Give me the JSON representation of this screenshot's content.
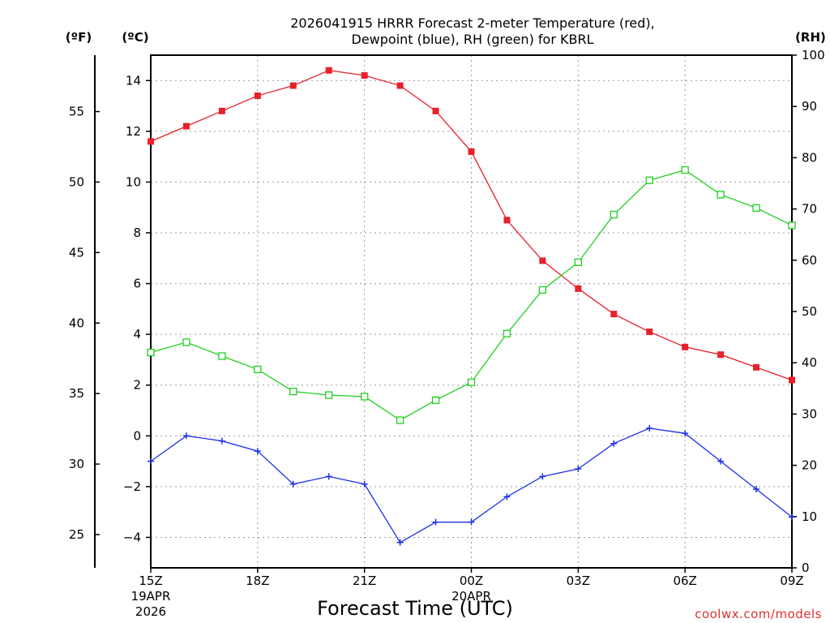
{
  "chart_data": {
    "type": "line",
    "title_line1": "2026041915 HRRR Forecast 2-meter Temperature (red),",
    "title_line2": "Dewpoint (blue), RH (green) for KBRL",
    "units": {
      "fahrenheit": "(ºF)",
      "celsius": "(ºC)",
      "rh": "(RH)"
    },
    "xlabel": "Forecast Time (UTC)",
    "credit": "coolwx.com/models",
    "x_hours": [
      0,
      1,
      2,
      3,
      4,
      5,
      6,
      7,
      8,
      9,
      10,
      11,
      12,
      13,
      14,
      15,
      16,
      17,
      18
    ],
    "xlim": [
      0,
      18
    ],
    "x_ticks": [
      {
        "hour": 0,
        "label": "15Z",
        "date": "19APR",
        "year": "2026"
      },
      {
        "hour": 3,
        "label": "18Z"
      },
      {
        "hour": 6,
        "label": "21Z"
      },
      {
        "hour": 9,
        "label": "00Z",
        "date": "20APR"
      },
      {
        "hour": 12,
        "label": "03Z"
      },
      {
        "hour": 15,
        "label": "06Z"
      },
      {
        "hour": 18,
        "label": "09Z"
      }
    ],
    "celsius_axis": {
      "ylim": [
        -5.2,
        15
      ],
      "ticks": [
        -4,
        -2,
        0,
        2,
        4,
        6,
        8,
        10,
        12,
        14
      ]
    },
    "fahrenheit_axis": {
      "ticks": [
        25,
        30,
        35,
        40,
        45,
        50,
        55
      ]
    },
    "rh_axis": {
      "ylim": [
        0,
        100
      ],
      "ticks": [
        0,
        10,
        20,
        30,
        40,
        50,
        60,
        70,
        80,
        90,
        100
      ]
    },
    "series": [
      {
        "name": "Temperature",
        "units": "C",
        "color": "#e8202a",
        "marker": "filled-square",
        "values": [
          11.6,
          12.2,
          12.8,
          13.4,
          13.8,
          14.4,
          14.2,
          13.8,
          12.8,
          11.2,
          8.5,
          6.9,
          5.8,
          4.8,
          4.1,
          3.5,
          3.2,
          2.7,
          2.2
        ]
      },
      {
        "name": "Dewpoint",
        "units": "C",
        "color": "#2030e8",
        "marker": "plus",
        "values": [
          -1.0,
          0.0,
          -0.2,
          -0.6,
          -1.9,
          -1.6,
          -1.9,
          -4.2,
          -3.4,
          -3.4,
          -2.4,
          -1.6,
          -1.3,
          -0.3,
          0.3,
          0.1,
          -1.0,
          -2.1,
          -3.2
        ]
      },
      {
        "name": "RH",
        "units": "%",
        "color": "#20d020",
        "marker": "open-square",
        "values": [
          42,
          44,
          41.3,
          38.7,
          34.4,
          33.7,
          33.4,
          28.8,
          32.7,
          36.2,
          45.7,
          54.2,
          59.6,
          68.9,
          75.6,
          77.6,
          72.8,
          70.2,
          66.8
        ]
      }
    ]
  }
}
